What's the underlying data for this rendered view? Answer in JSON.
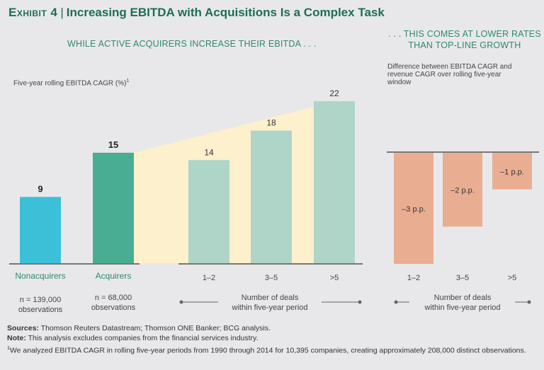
{
  "header": {
    "exhibit_label": "Exhibit 4",
    "separator": "|",
    "title": "Increasing EBITDA with Acquisitions Is a Complex Task"
  },
  "left_panel": {
    "subheading": "WHILE ACTIVE ACQUIRERS INCREASE THEIR EBITDA . . .",
    "ylabel": "Five-year rolling EBITDA CAGR (%)",
    "ylabel_sup": "1"
  },
  "right_panel": {
    "subheading_line1": ". . . THIS COMES AT LOWER RATES",
    "subheading_line2": "THAN TOP-LINE GROWTH",
    "ylabel": "Difference between EBITDA CAGR and revenue CAGR over rolling five-year window"
  },
  "colors": {
    "title_green": "#1e6e54",
    "subhead_green": "#2f8a6a",
    "nonacquirers": "#3cc0d8",
    "acquirers": "#48ad93",
    "deal_bars": "#afd4c8",
    "wedge": "#fdf0cc",
    "negative_bars": "#e9ae92",
    "axis": "#777777"
  },
  "chart_data": [
    {
      "type": "bar",
      "title": "WHILE ACTIVE ACQUIRERS INCREASE THEIR EBITDA . . .",
      "ylabel": "Five-year rolling EBITDA CAGR (%)",
      "ylim": [
        0,
        22
      ],
      "grid": false,
      "groups": [
        {
          "name": "comparison",
          "categories": [
            "Nonacquirers",
            "Acquirers"
          ],
          "values": [
            9,
            15
          ],
          "value_labels": [
            "9",
            "15"
          ],
          "notes": [
            "n = 139,000 observations",
            "n = 68,000 observations"
          ]
        },
        {
          "name": "acquirers-by-deal-count",
          "categories": [
            "1–2",
            "3–5",
            ">5"
          ],
          "values": [
            14,
            18,
            22
          ],
          "value_labels": [
            "14",
            "18",
            "22"
          ],
          "xlabel": "Number of deals within five-year period"
        }
      ]
    },
    {
      "type": "bar",
      "title": ". . . THIS COMES AT LOWER RATES THAN TOP-LINE GROWTH",
      "ylabel": "Difference between EBITDA CAGR and revenue CAGR over rolling five-year window",
      "categories": [
        "1–2",
        "3–5",
        ">5"
      ],
      "values": [
        -3,
        -2,
        -1
      ],
      "value_labels": [
        "–3 p.p.",
        "–2 p.p.",
        "–1 p.p."
      ],
      "unit": "p.p.",
      "ylim": [
        -3,
        0
      ],
      "xlabel": "Number of deals within five-year period",
      "grid": false
    }
  ],
  "labels": {
    "nonacquirers": "Nonacquirers",
    "acquirers": "Acquirers",
    "n_nonacq_1": "n = 139,000",
    "n_nonacq_2": "observations",
    "n_acq_1": "n = 68,000",
    "n_acq_2": "observations",
    "deals_line1": "Number of deals",
    "deals_line2": "within five-year period"
  },
  "footer": {
    "sources_label": "Sources:",
    "sources_text": " Thomson Reuters Datastream; Thomson ONE Banker; BCG analysis.",
    "note_label": "Note:",
    "note_text": " This analysis excludes companies from the financial services industry.",
    "footnote_mark": "1",
    "footnote_text": "We analyzed EBITDA CAGR in rolling five-year periods from 1990 through 2014 for 10,395 companies, creating approximately 208,000 distinct observations."
  }
}
